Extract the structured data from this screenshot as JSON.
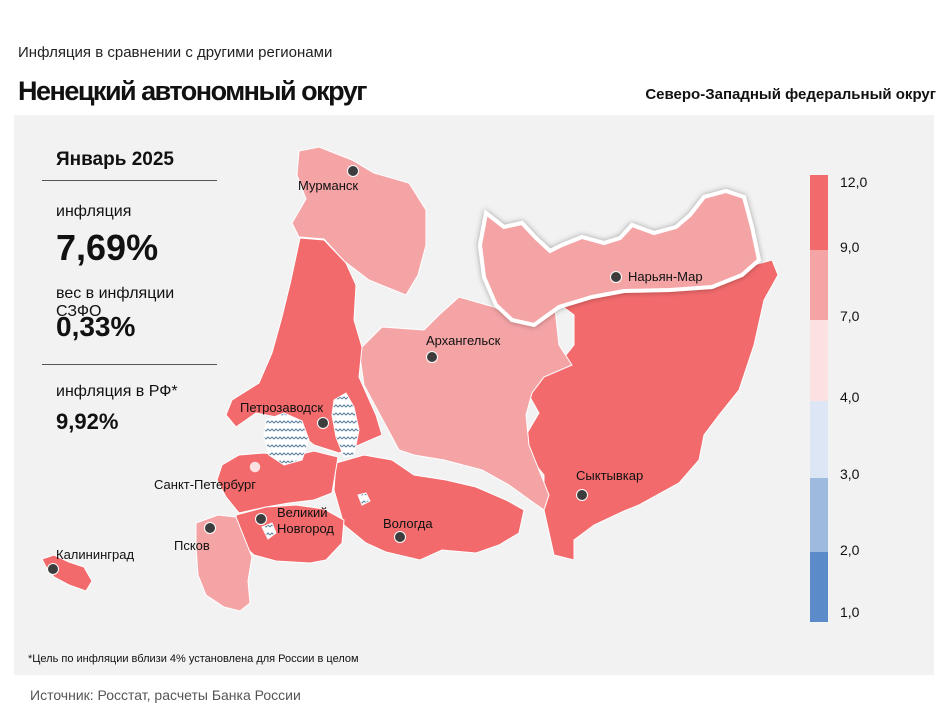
{
  "header": {
    "subtitle": "Инфляция  в сравнении  с другими  регионами",
    "title": "Ненецкий автономный округ",
    "district": "Северо-Западный федеральный округ"
  },
  "stats": {
    "period": "Январь 2025",
    "inflation_label": "инфляция",
    "inflation_value": "7,69%",
    "weight_label": "вес в инфляции  СЗФО",
    "weight_value": "0,33%",
    "russia_label": "инфляция  в РФ*",
    "russia_value": "9,92%"
  },
  "footnote": "*Цель по инфляции вблизи 4% установлена для России в целом",
  "source": "Источник:  Росстат,  расчеты Банка  России",
  "colors": {
    "above_9": "#f26a6c",
    "from_7_to_9": "#f5a4a6",
    "from_4_to_7": "#fbe1e2",
    "from_3_to_4": "#dce6f5",
    "from_2_to_3": "#9fbadf",
    "below_2": "#5b8cc9",
    "highlight_region": "Ненецкий автономный округ"
  },
  "legend": {
    "ticks": [
      "12,0",
      "9,0",
      "7,0",
      "4,0",
      "3,0",
      "2,0",
      "1,0"
    ]
  },
  "cities": {
    "murmansk": "Мурманск",
    "naryan_mar": "Нарьян-Мар",
    "arkhangelsk": "Архангельск",
    "petrozavodsk": "Петрозаводск",
    "spb": "Санкт-Петербург",
    "novgorod_1": "Великий",
    "novgorod_2": "Новгород",
    "pskov": "Псков",
    "vologda": "Вологда",
    "syktyvkar": "Сыктывкар",
    "kaliningrad": "Калининград"
  },
  "regions": [
    {
      "name": "Мурманская область",
      "band": "7-9"
    },
    {
      "name": "Республика Карелия",
      "band": ">9"
    },
    {
      "name": "Архангельская область",
      "band": "7-9"
    },
    {
      "name": "Ненецкий автономный округ",
      "band": "7-9"
    },
    {
      "name": "Республика Коми",
      "band": ">9"
    },
    {
      "name": "Вологодская область",
      "band": ">9"
    },
    {
      "name": "Ленинградская область",
      "band": ">9"
    },
    {
      "name": "Санкт-Петербург",
      "band": "4-7"
    },
    {
      "name": "Новгородская область",
      "band": ">9"
    },
    {
      "name": "Псковская область",
      "band": "7-9"
    },
    {
      "name": "Калининградская область",
      "band": ">9"
    }
  ]
}
